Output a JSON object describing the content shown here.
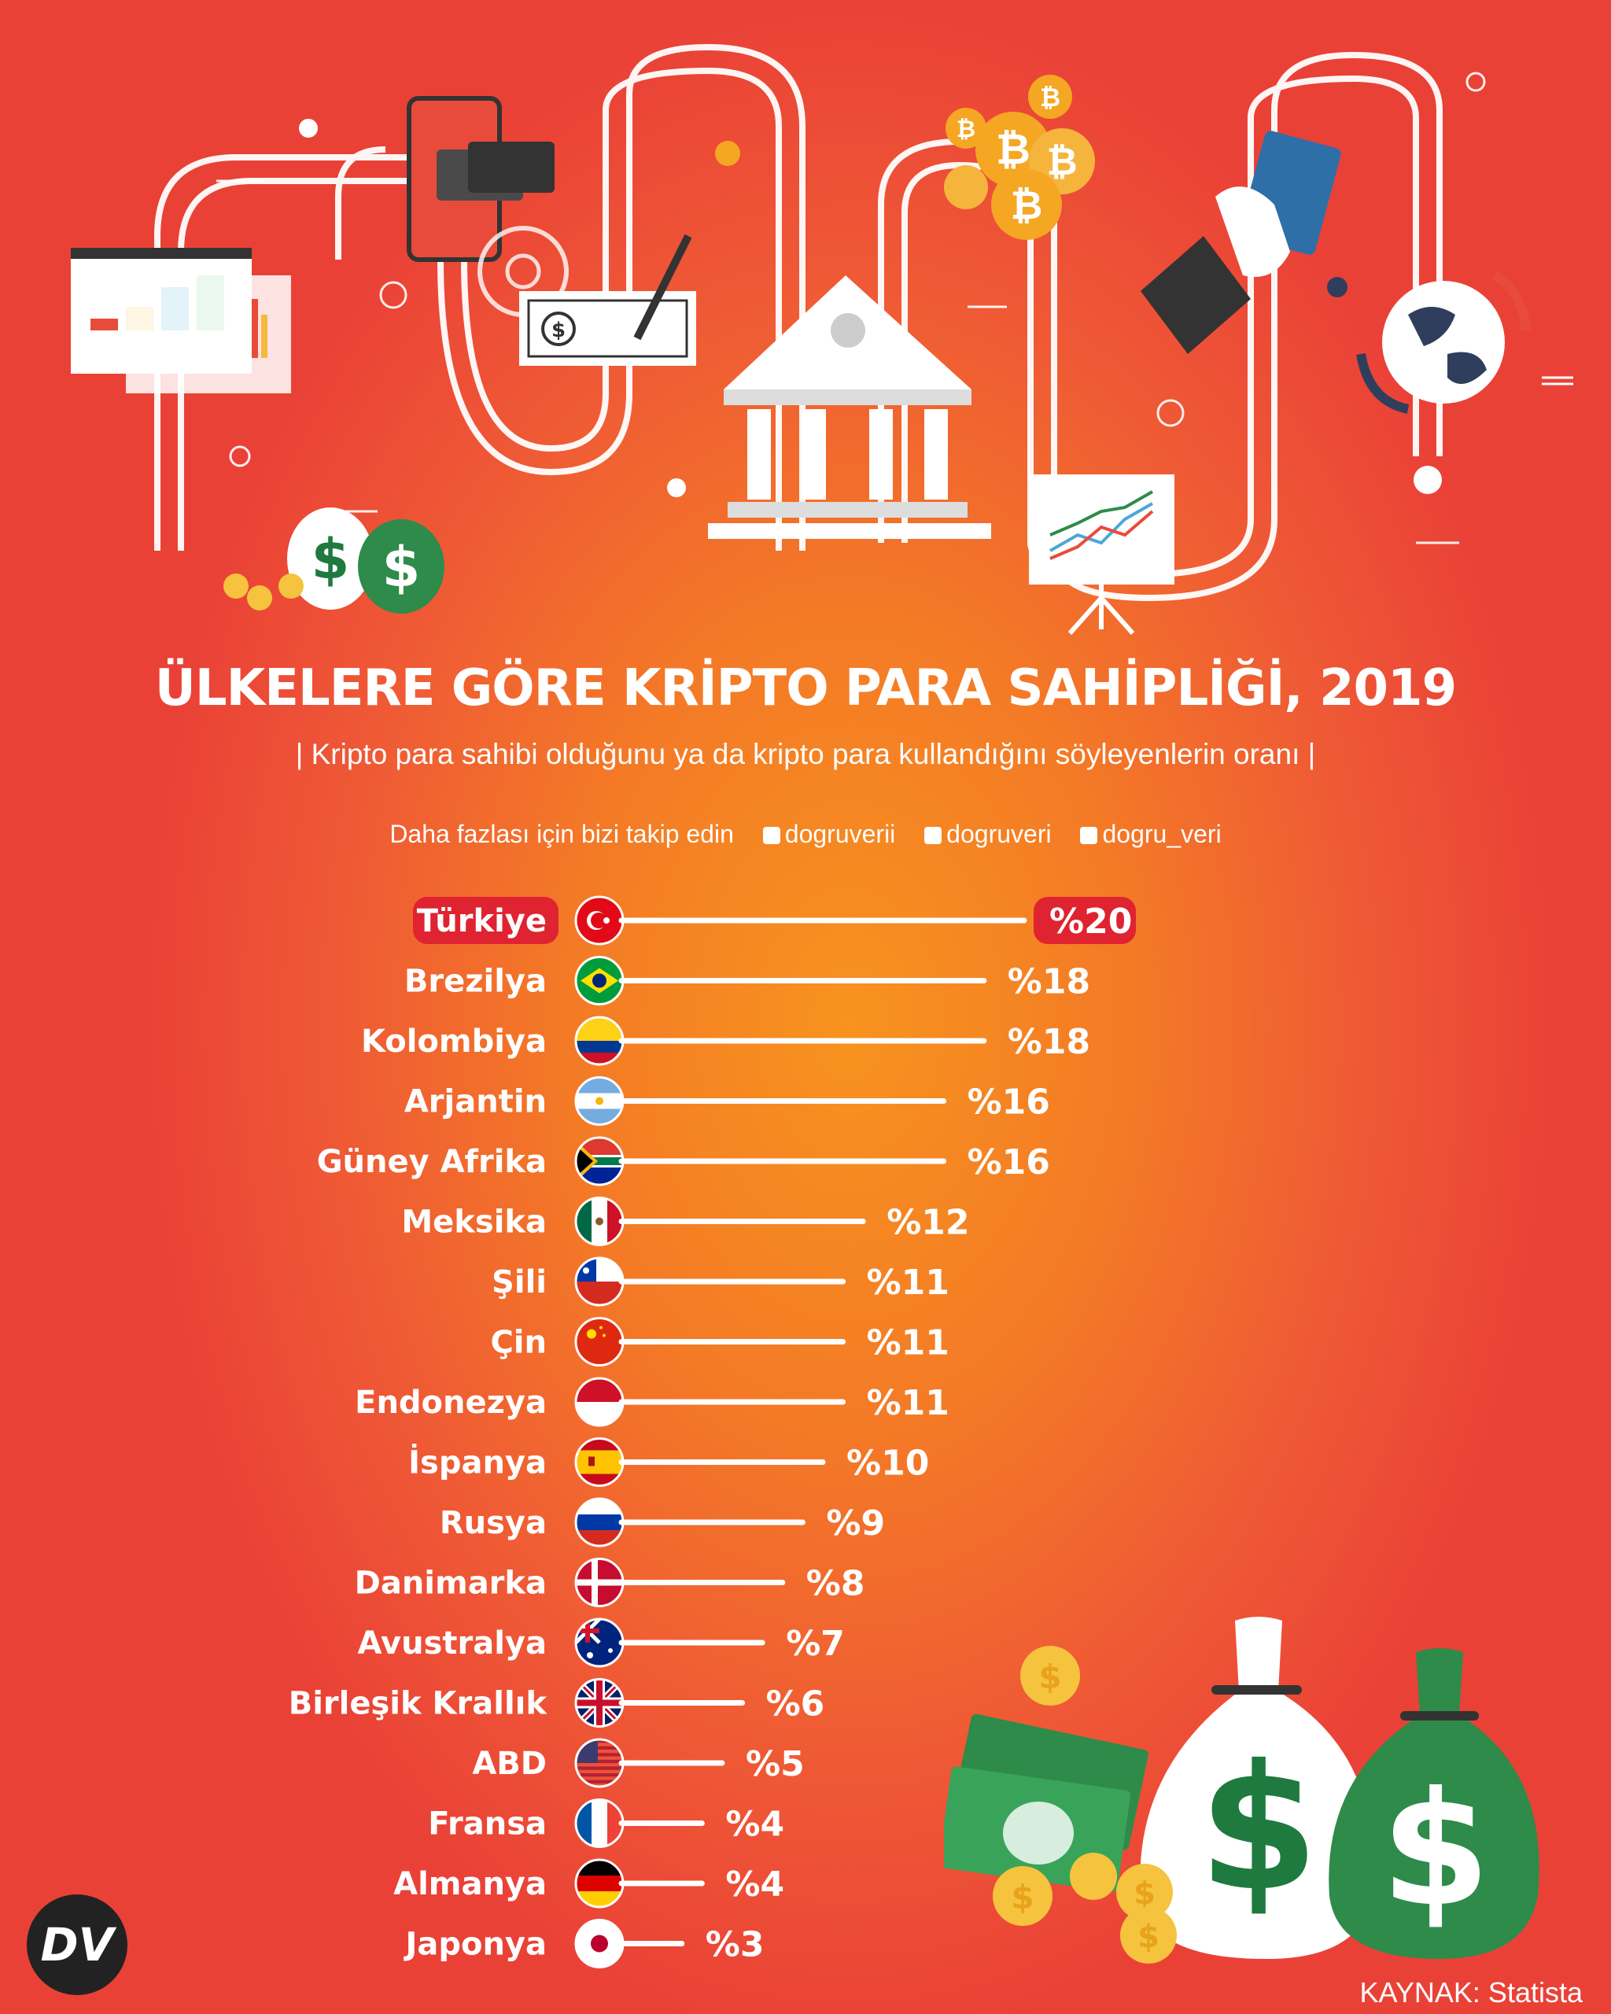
{
  "header": {
    "title": "ÜLKELERE GÖRE KRİPTO PARA SAHİPLİĞİ, 2019",
    "subtitle": "| Kripto para sahibi olduğunu ya da kripto para kullandığını söyleyenlerin oranı |"
  },
  "social": {
    "intro": "Daha fazlası için bizi takip edin",
    "facebook": "dogruverii",
    "instagram": "dogruveri",
    "twitter": "dogru_veri"
  },
  "colors": {
    "highlight": "#e02330",
    "bar": "#ffffff",
    "background_center": "#f7931e",
    "background_edge": "#ea4137"
  },
  "icons": [
    "bar-chart-window-icon",
    "money-bags-icon",
    "smartphone-card-icon",
    "gear-icon",
    "check-pen-icon",
    "bank-building-icon",
    "bitcoin-coins-icon",
    "line-chart-board-icon",
    "hand-card-icon",
    "globe-icon"
  ],
  "chart_data": {
    "type": "bar",
    "orientation": "horizontal",
    "categories": [
      "Türkiye",
      "Brezilya",
      "Kolombiya",
      "Arjantin",
      "Güney Afrika",
      "Meksika",
      "Şili",
      "Çin",
      "Endonezya",
      "İspanya",
      "Rusya",
      "Danimarka",
      "Avustralya",
      "Birleşik Krallık",
      "ABD",
      "Fransa",
      "Almanya",
      "Japonya"
    ],
    "values": [
      20,
      18,
      18,
      16,
      16,
      12,
      11,
      11,
      11,
      10,
      9,
      8,
      7,
      6,
      5,
      4,
      4,
      3
    ],
    "value_labels": [
      "%20",
      "%18",
      "%18",
      "%16",
      "%16",
      "%12",
      "%11",
      "%11",
      "%11",
      "%10",
      "%9",
      "%8",
      "%7",
      "%6",
      "%5",
      "%4",
      "%4",
      "%3"
    ],
    "highlighted_category": "Türkiye",
    "flags": [
      "tr",
      "br",
      "co",
      "ar",
      "za",
      "mx",
      "cl",
      "cn",
      "id",
      "es",
      "ru",
      "dk",
      "au",
      "gb",
      "us",
      "fr",
      "de",
      "jp"
    ],
    "unit": "%",
    "xlim": [
      0,
      20
    ],
    "grid": false
  },
  "source": "KAYNAK: Statista",
  "logo_text": "DV"
}
